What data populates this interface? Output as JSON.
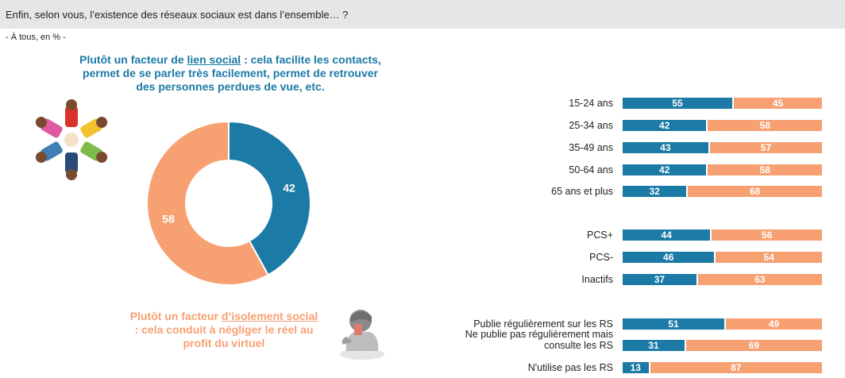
{
  "header": {
    "question": "Enfin, selon vous, l’existence des réseaux sociaux est dans l’ensemble… ?",
    "base": "- À tous, en % -"
  },
  "captions": {
    "top_pre": "Plutôt un facteur de ",
    "top_u": "lien social",
    "top_post": " : cela facilite les contacts, permet de se parler très facilement, permet de retrouver des personnes perdues de vue, etc.",
    "bottom_pre": "Plutôt un facteur ",
    "bottom_u": "d’isolement social",
    "bottom_post": " : cela conduit à négliger le réel au profit du virtuel"
  },
  "colors": {
    "lien_social": "#1b7aa6",
    "isolement": "#f7a072"
  },
  "icons": [
    "people-circle-icon",
    "isolated-person-phone-icon"
  ],
  "chart_data": [
    {
      "type": "pie",
      "donut": true,
      "labels": [
        "Plutôt un facteur de lien social",
        "Plutôt un facteur d’isolement social"
      ],
      "values": [
        42,
        58
      ]
    },
    {
      "type": "bar",
      "orientation": "horizontal",
      "stacked": true,
      "groups": [
        {
          "categories": [
            "15-24 ans",
            "25-34 ans",
            "35-49 ans",
            "50-64 ans",
            "65 ans et plus"
          ]
        },
        {
          "categories": [
            "PCS+",
            "PCS-",
            "Inactifs"
          ]
        },
        {
          "categories": [
            "Publie régulièrement sur les RS",
            "Ne publie pas régulièrement mais consulte les RS",
            "N'utilise pas les RS"
          ]
        }
      ],
      "categories": [
        "15-24 ans",
        "25-34 ans",
        "35-49 ans",
        "50-64 ans",
        "65 ans et plus",
        "PCS+",
        "PCS-",
        "Inactifs",
        "Publie régulièrement sur les RS",
        "Ne publie pas régulièrement mais consulte les RS",
        "N'utilise pas les RS"
      ],
      "series": [
        {
          "values": [
            55,
            42,
            43,
            42,
            32,
            44,
            46,
            37,
            51,
            31,
            13
          ]
        },
        {
          "values": [
            45,
            58,
            57,
            58,
            68,
            56,
            54,
            63,
            49,
            69,
            87
          ]
        }
      ],
      "xlim": [
        0,
        100
      ]
    }
  ]
}
